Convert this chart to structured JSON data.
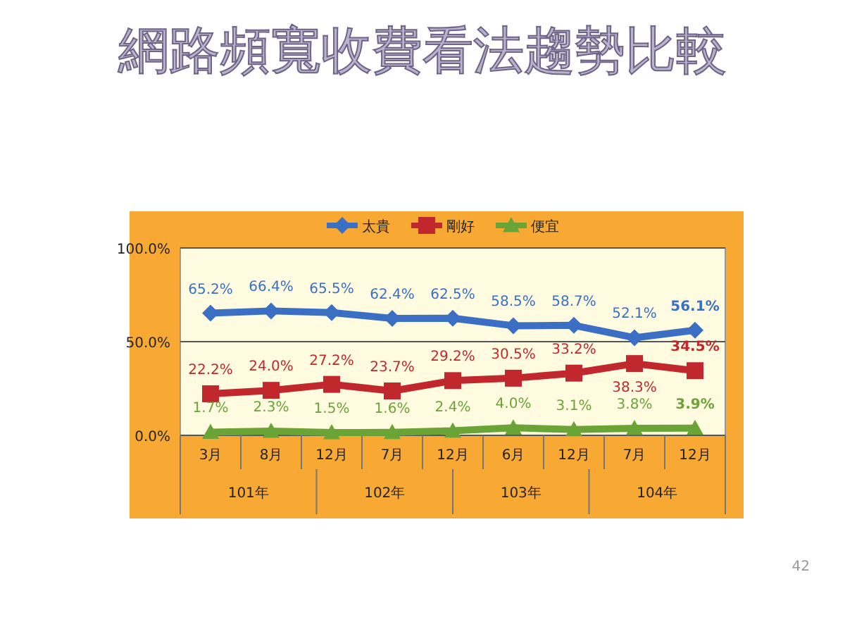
{
  "chart_data": {
    "type": "line",
    "title": "網路頻寬收費看法趨勢比較",
    "categories": [
      "3月",
      "8月",
      "12月",
      "7月",
      "12月",
      "6月",
      "12月",
      "7月",
      "12月"
    ],
    "series": [
      {
        "name": "太貴",
        "color": "#3a6fc4",
        "marker": "diamond",
        "values": [
          65.2,
          66.4,
          65.5,
          62.4,
          62.5,
          58.5,
          58.7,
          52.1,
          56.1
        ],
        "value_labels": [
          "65.2%",
          "66.4%",
          "65.5%",
          "62.4%",
          "62.5%",
          "58.5%",
          "58.7%",
          "52.1%",
          "56.1%"
        ]
      },
      {
        "name": "剛好",
        "color": "#c0282d",
        "marker": "square",
        "values": [
          22.2,
          24.0,
          27.2,
          23.7,
          29.2,
          30.5,
          33.2,
          38.3,
          34.5
        ],
        "value_labels": [
          "22.2%",
          "24.0%",
          "27.2%",
          "23.7%",
          "29.2%",
          "30.5%",
          "33.2%",
          "38.3%",
          "34.5%"
        ]
      },
      {
        "name": "便宜",
        "color": "#6aa336",
        "marker": "triangle",
        "values": [
          1.7,
          2.3,
          1.5,
          1.6,
          2.4,
          4.0,
          3.1,
          3.8,
          3.9
        ],
        "value_labels": [
          "1.7%",
          "2.3%",
          "1.5%",
          "1.6%",
          "2.4%",
          "4.0%",
          "3.1%",
          "3.8%",
          "3.9%"
        ]
      }
    ],
    "ylim": [
      0,
      100
    ],
    "yticks": [
      {
        "value": 0,
        "label": "0.0%"
      },
      {
        "value": 50,
        "label": "50.0%"
      },
      {
        "value": 100,
        "label": "100.0%"
      }
    ],
    "grid": "y",
    "legend": "top",
    "line_style": "solid",
    "annotations": [
      "101年",
      "102年",
      "103年",
      "104年",
      "42"
    ]
  }
}
